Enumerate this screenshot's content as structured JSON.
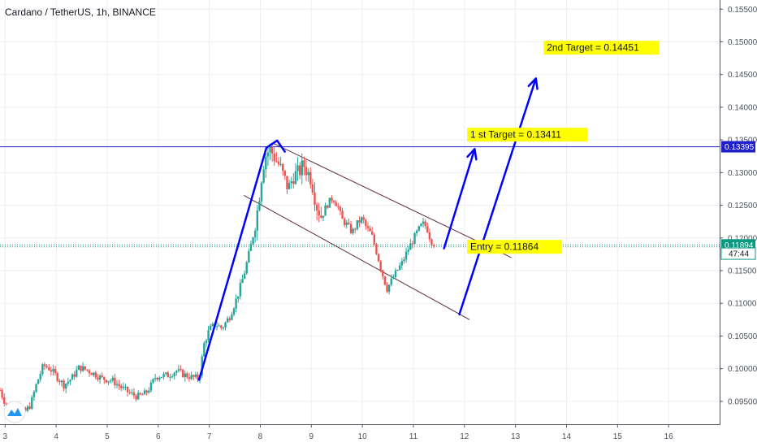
{
  "header": {
    "title": "Cardano / TetherUS, 1h, BINANCE"
  },
  "chart_data": {
    "type": "candlestick",
    "y_axis": {
      "position": "right",
      "ticks": [
        "0.09500",
        "0.10000",
        "0.10500",
        "0.11000",
        "0.11500",
        "0.12000",
        "0.12500",
        "0.13000",
        "0.13500",
        "0.14000",
        "0.14500",
        "0.15000",
        "0.15500"
      ],
      "range": [
        0.0915,
        0.1564
      ]
    },
    "x_axis": {
      "ticks": [
        "3",
        "4",
        "5",
        "6",
        "7",
        "8",
        "9",
        "10",
        "11",
        "12",
        "13",
        "14",
        "15",
        "16"
      ],
      "range": [
        2.9,
        17.0
      ]
    },
    "grid": true,
    "colors": {
      "up": "#26a69a",
      "down": "#ef5350",
      "trend": "#0000ff",
      "level": "#1e1ecc",
      "channel": "#5d2a3a",
      "label_bg": "#ffff00",
      "price_line": "#089981"
    },
    "price_badges": [
      {
        "text": "0.13395",
        "value": 0.13395,
        "color": "#1e1ecc"
      },
      {
        "text": "0.11894",
        "value": 0.11894,
        "color": "#089981"
      },
      {
        "text": "47:44",
        "value": 0.1176,
        "color": "#ffffff"
      }
    ],
    "horizontal_lines": [
      {
        "value": 0.13395,
        "style": "solid"
      },
      {
        "value": 0.11894,
        "style": "dotted"
      },
      {
        "value": 0.11864,
        "style": "dotted"
      }
    ],
    "annotations": [
      {
        "text": "2nd Target  = 0.14451",
        "x": 13.55,
        "y": 0.1491
      },
      {
        "text": "1 st Target  = 0.13411",
        "x": 12.05,
        "y": 0.1358
      },
      {
        "text": "Entry   = 0.11864",
        "x": 12.05,
        "y": 0.11864
      }
    ],
    "channel_lines": [
      {
        "from": [
          8.25,
          0.1345
        ],
        "to": [
          12.92,
          0.117
        ]
      },
      {
        "from": [
          7.68,
          0.1265
        ],
        "to": [
          12.1,
          0.1075
        ]
      }
    ],
    "trend_arrows": [
      {
        "points": [
          [
            6.8,
            0.0983
          ],
          [
            8.12,
            0.1338
          ],
          [
            8.33,
            0.1349
          ],
          [
            8.48,
            0.1332
          ]
        ]
      },
      {
        "points": [
          [
            11.6,
            0.1184
          ],
          [
            12.2,
            0.1336
          ]
        ]
      },
      {
        "points": [
          [
            11.9,
            0.1083
          ],
          [
            13.4,
            0.1444
          ]
        ]
      }
    ],
    "ohlc_path": [
      [
        2.9,
        0.0967
      ],
      [
        3.0,
        0.0948
      ],
      [
        3.2,
        0.0932
      ],
      [
        3.4,
        0.0935
      ],
      [
        3.5,
        0.0945
      ],
      [
        3.62,
        0.0978
      ],
      [
        3.75,
        0.1005
      ],
      [
        3.88,
        0.1
      ],
      [
        4.0,
        0.0989
      ],
      [
        4.15,
        0.0975
      ],
      [
        4.3,
        0.0985
      ],
      [
        4.45,
        0.1002
      ],
      [
        4.6,
        0.0998
      ],
      [
        4.75,
        0.0992
      ],
      [
        4.9,
        0.0985
      ],
      [
        5.1,
        0.0982
      ],
      [
        5.3,
        0.097
      ],
      [
        5.45,
        0.0962
      ],
      [
        5.6,
        0.0957
      ],
      [
        5.75,
        0.0962
      ],
      [
        5.85,
        0.0973
      ],
      [
        5.95,
        0.0988
      ],
      [
        6.05,
        0.0989
      ],
      [
        6.2,
        0.099
      ],
      [
        6.35,
        0.0997
      ],
      [
        6.5,
        0.0991
      ],
      [
        6.65,
        0.0987
      ],
      [
        6.8,
        0.0985
      ],
      [
        6.9,
        0.1038
      ],
      [
        7.0,
        0.106
      ],
      [
        7.12,
        0.1068
      ],
      [
        7.25,
        0.1062
      ],
      [
        7.4,
        0.108
      ],
      [
        7.55,
        0.111
      ],
      [
        7.7,
        0.115
      ],
      [
        7.85,
        0.12
      ],
      [
        7.95,
        0.1245
      ],
      [
        8.05,
        0.131
      ],
      [
        8.12,
        0.133
      ],
      [
        8.2,
        0.1335
      ],
      [
        8.3,
        0.132
      ],
      [
        8.38,
        0.131
      ],
      [
        8.45,
        0.1295
      ],
      [
        8.55,
        0.1275
      ],
      [
        8.65,
        0.1295
      ],
      [
        8.75,
        0.13
      ],
      [
        8.85,
        0.1312
      ],
      [
        9.0,
        0.129
      ],
      [
        9.1,
        0.125
      ],
      [
        9.2,
        0.1232
      ],
      [
        9.3,
        0.125
      ],
      [
        9.42,
        0.1262
      ],
      [
        9.52,
        0.1248
      ],
      [
        9.6,
        0.1228
      ],
      [
        9.7,
        0.122
      ],
      [
        9.8,
        0.1208
      ],
      [
        9.9,
        0.1222
      ],
      [
        10.0,
        0.123
      ],
      [
        10.08,
        0.1215
      ],
      [
        10.18,
        0.1205
      ],
      [
        10.28,
        0.1178
      ],
      [
        10.38,
        0.1148
      ],
      [
        10.48,
        0.1122
      ],
      [
        10.58,
        0.1136
      ],
      [
        10.68,
        0.115
      ],
      [
        10.78,
        0.1162
      ],
      [
        10.88,
        0.118
      ],
      [
        10.98,
        0.1195
      ],
      [
        11.08,
        0.121
      ],
      [
        11.18,
        0.1222
      ],
      [
        11.26,
        0.1217
      ],
      [
        11.34,
        0.1196
      ],
      [
        11.42,
        0.119
      ]
    ]
  }
}
